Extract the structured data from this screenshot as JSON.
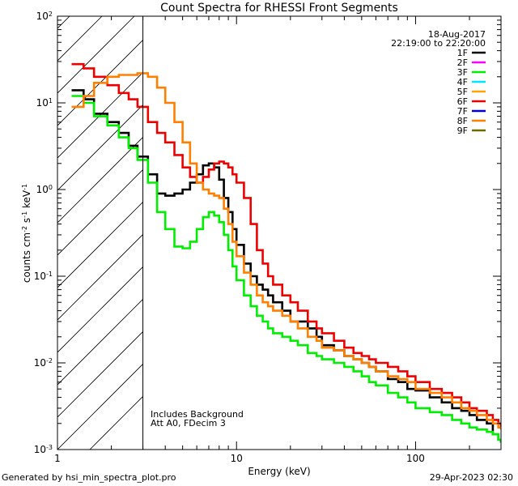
{
  "chart_data": {
    "type": "line",
    "title": "Count Spectra for RHESSI Front Segments",
    "xlabel": "Energy (keV)",
    "ylabel": "counts cm^-2 s^-1 keV^-1",
    "xscale": "log",
    "yscale": "log",
    "xlim": [
      1,
      300
    ],
    "ylim": [
      0.001,
      100
    ],
    "x_ticks": [
      {
        "value": 1,
        "label": "1"
      },
      {
        "value": 10,
        "label": "10"
      },
      {
        "value": 100,
        "label": "100"
      }
    ],
    "y_ticks": [
      {
        "value": 0.001,
        "base": "10",
        "exp": "-3"
      },
      {
        "value": 0.01,
        "base": "10",
        "exp": "-2"
      },
      {
        "value": 0.1,
        "base": "10",
        "exp": "-1"
      },
      {
        "value": 1,
        "base": "10",
        "exp": "0"
      },
      {
        "value": 10,
        "base": "10",
        "exp": "1"
      },
      {
        "value": 100,
        "base": "10",
        "exp": "2"
      }
    ],
    "hatched_region_max_keV": 3,
    "date": "18-Aug-2017",
    "time_range": "22:19:00 to 22:20:00",
    "annotations": [
      "Includes Background",
      "Att A0, FDecim 3"
    ],
    "legend": [
      {
        "label": "1F",
        "color": "#000000"
      },
      {
        "label": "2F",
        "color": "#ff00ff"
      },
      {
        "label": "3F",
        "color": "#00ee00"
      },
      {
        "label": "4F",
        "color": "#00e5ff"
      },
      {
        "label": "5F",
        "color": "#ffa500"
      },
      {
        "label": "6F",
        "color": "#ee0000"
      },
      {
        "label": "7F",
        "color": "#0000cc"
      },
      {
        "label": "8F",
        "color": "#ff7f00"
      },
      {
        "label": "9F",
        "color": "#6b6b00"
      }
    ],
    "series": [
      {
        "name": "1F",
        "color": "#000000",
        "x": [
          1.2,
          1.4,
          1.6,
          1.9,
          2.2,
          2.5,
          2.8,
          3.2,
          3.6,
          4.0,
          4.5,
          5.0,
          5.5,
          6.0,
          6.5,
          7.0,
          7.5,
          8.0,
          8.5,
          9.0,
          9.5,
          10,
          11,
          12,
          13,
          14,
          15,
          16,
          18,
          20,
          22,
          25,
          28,
          30,
          35,
          40,
          45,
          50,
          55,
          60,
          70,
          80,
          90,
          100,
          120,
          140,
          160,
          180,
          200,
          220,
          250,
          270,
          290,
          300
        ],
        "y": [
          14,
          11,
          7.5,
          6,
          4.5,
          3.2,
          2.4,
          1.5,
          0.9,
          0.85,
          0.9,
          1.0,
          1.2,
          1.5,
          1.9,
          2.0,
          1.8,
          1.3,
          0.8,
          0.55,
          0.35,
          0.23,
          0.14,
          0.1,
          0.08,
          0.07,
          0.06,
          0.05,
          0.04,
          0.03,
          0.03,
          0.025,
          0.02,
          0.016,
          0.014,
          0.012,
          0.011,
          0.01,
          0.009,
          0.008,
          0.0065,
          0.006,
          0.005,
          0.0048,
          0.004,
          0.0035,
          0.003,
          0.0028,
          0.0025,
          0.0022,
          0.002,
          0.0015,
          0.0013,
          0.0012
        ]
      },
      {
        "name": "3F",
        "color": "#00ee00",
        "x": [
          1.2,
          1.4,
          1.6,
          1.9,
          2.2,
          2.5,
          2.8,
          3.2,
          3.6,
          4.0,
          4.5,
          5.0,
          5.5,
          6.0,
          6.5,
          7.0,
          7.5,
          8.0,
          8.5,
          9.0,
          9.5,
          10,
          11,
          12,
          13,
          14,
          15,
          16,
          18,
          20,
          22,
          25,
          28,
          30,
          35,
          40,
          45,
          50,
          55,
          60,
          70,
          80,
          90,
          100,
          120,
          140,
          160,
          180,
          200,
          220,
          250,
          270,
          290,
          300
        ],
        "y": [
          12,
          10,
          7,
          5.5,
          4,
          3,
          2.2,
          1.2,
          0.55,
          0.35,
          0.22,
          0.21,
          0.25,
          0.35,
          0.48,
          0.55,
          0.5,
          0.42,
          0.3,
          0.2,
          0.13,
          0.09,
          0.06,
          0.045,
          0.035,
          0.03,
          0.025,
          0.022,
          0.02,
          0.018,
          0.016,
          0.013,
          0.012,
          0.011,
          0.01,
          0.009,
          0.008,
          0.007,
          0.006,
          0.0055,
          0.0045,
          0.004,
          0.0035,
          0.003,
          0.0027,
          0.0025,
          0.0022,
          0.002,
          0.0018,
          0.0017,
          0.0016,
          0.0015,
          0.0013,
          0.0012
        ]
      },
      {
        "name": "6F",
        "color": "#ee0000",
        "x": [
          1.2,
          1.4,
          1.6,
          1.9,
          2.2,
          2.5,
          2.8,
          3.2,
          3.6,
          4.0,
          4.5,
          5.0,
          5.5,
          6.0,
          6.5,
          7.0,
          7.5,
          8.0,
          8.5,
          9.0,
          9.5,
          10,
          11,
          12,
          13,
          14,
          15,
          16,
          18,
          20,
          22,
          25,
          28,
          30,
          35,
          40,
          45,
          50,
          55,
          60,
          70,
          80,
          90,
          100,
          120,
          140,
          160,
          180,
          200,
          220,
          250,
          270,
          290,
          300
        ],
        "y": [
          28,
          25,
          20,
          16,
          13,
          11,
          9,
          6,
          4.5,
          3.5,
          2.5,
          1.8,
          1.4,
          1.2,
          1.4,
          1.7,
          2.0,
          2.1,
          2.0,
          1.8,
          1.5,
          1.2,
          0.8,
          0.4,
          0.2,
          0.14,
          0.1,
          0.08,
          0.06,
          0.05,
          0.04,
          0.03,
          0.025,
          0.022,
          0.018,
          0.015,
          0.013,
          0.012,
          0.011,
          0.01,
          0.009,
          0.008,
          0.007,
          0.006,
          0.005,
          0.0045,
          0.004,
          0.0035,
          0.003,
          0.0028,
          0.0025,
          0.0022,
          0.002,
          0.0018
        ]
      },
      {
        "name": "8F",
        "color": "#ff7f00",
        "x": [
          1.2,
          1.4,
          1.6,
          1.9,
          2.2,
          2.5,
          2.8,
          3.2,
          3.6,
          4.0,
          4.5,
          5.0,
          5.5,
          6.0,
          6.5,
          7.0,
          7.5,
          8.0,
          8.5,
          9.0,
          9.5,
          10,
          11,
          12,
          13,
          14,
          15,
          16,
          18,
          20,
          22,
          25,
          28,
          30,
          35,
          40,
          45,
          50,
          55,
          60,
          70,
          80,
          90,
          100,
          120,
          140,
          160,
          180,
          200,
          220,
          250,
          270,
          290,
          300
        ],
        "y": [
          9,
          12,
          17,
          20,
          21,
          21,
          22,
          20,
          15,
          10,
          6,
          3.5,
          2.0,
          1.2,
          1.0,
          0.9,
          0.85,
          0.8,
          0.6,
          0.4,
          0.25,
          0.17,
          0.11,
          0.08,
          0.06,
          0.05,
          0.045,
          0.04,
          0.035,
          0.03,
          0.025,
          0.02,
          0.018,
          0.015,
          0.014,
          0.012,
          0.011,
          0.01,
          0.009,
          0.008,
          0.007,
          0.0065,
          0.006,
          0.005,
          0.0045,
          0.004,
          0.0035,
          0.003,
          0.0028,
          0.0025,
          0.0022,
          0.002,
          0.0018,
          0.0017
        ]
      }
    ]
  },
  "footer": {
    "generated_by": "Generated by hsi_min_spectra_plot.pro",
    "timestamp": "29-Apr-2023 02:30"
  }
}
